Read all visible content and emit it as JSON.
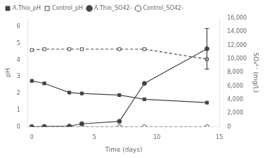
{
  "chart_data": {
    "type": "line",
    "xlabel": "Time (days)",
    "ylabel": "pH",
    "y2label": "SO₄²⁻ (mg/L)",
    "x": [
      0,
      1,
      3,
      4,
      7,
      9,
      14
    ],
    "series": [
      {
        "name": "A.Thio_pH",
        "color": "#444444",
        "marker": "square",
        "line_style": "solid",
        "axis": "y",
        "values": [
          2.75,
          2.6,
          2.05,
          2.0,
          1.9,
          1.65,
          1.45
        ]
      },
      {
        "name": "Control_pH",
        "color": "#444444",
        "marker": "open_square",
        "line_style": "dashed",
        "axis": "y",
        "values": [
          4.6,
          4.65,
          4.65,
          4.65,
          4.65,
          4.65,
          4.05
        ]
      },
      {
        "name": "A.Thio_SO42-",
        "color": "#444444",
        "marker": "circle",
        "line_style": "solid",
        "axis": "y2",
        "values": [
          0,
          50,
          100,
          450,
          800,
          6400,
          11500
        ],
        "error": [
          null,
          null,
          null,
          null,
          null,
          null,
          3000
        ]
      },
      {
        "name": "Control_SO42-",
        "color": "#444444",
        "marker": "open_circle",
        "line_style": "dashed",
        "axis": "y2",
        "values": [
          0,
          0,
          0,
          0,
          0,
          0,
          0
        ]
      }
    ],
    "xlim": [
      -0.3,
      15
    ],
    "xticks": [
      0,
      5,
      10,
      15
    ],
    "ylim": [
      0,
      6.5
    ],
    "yticks": [
      0,
      1,
      2,
      3,
      4,
      5,
      6
    ],
    "y2lim": [
      0,
      16000
    ],
    "y2ticks": [
      0,
      {
        "value": 2000,
        "label": "2,000"
      },
      {
        "value": 4000,
        "label": "4,000"
      },
      {
        "value": 6000,
        "label": "6,000"
      },
      {
        "value": 8000,
        "label": "8,000"
      },
      {
        "value": 10000,
        "label": "10,000"
      },
      {
        "value": 12000,
        "label": "12,000"
      },
      {
        "value": 14000,
        "label": "14,000"
      },
      {
        "value": 16000,
        "label": "16,000"
      }
    ],
    "grid": false,
    "legend": "upper left"
  }
}
